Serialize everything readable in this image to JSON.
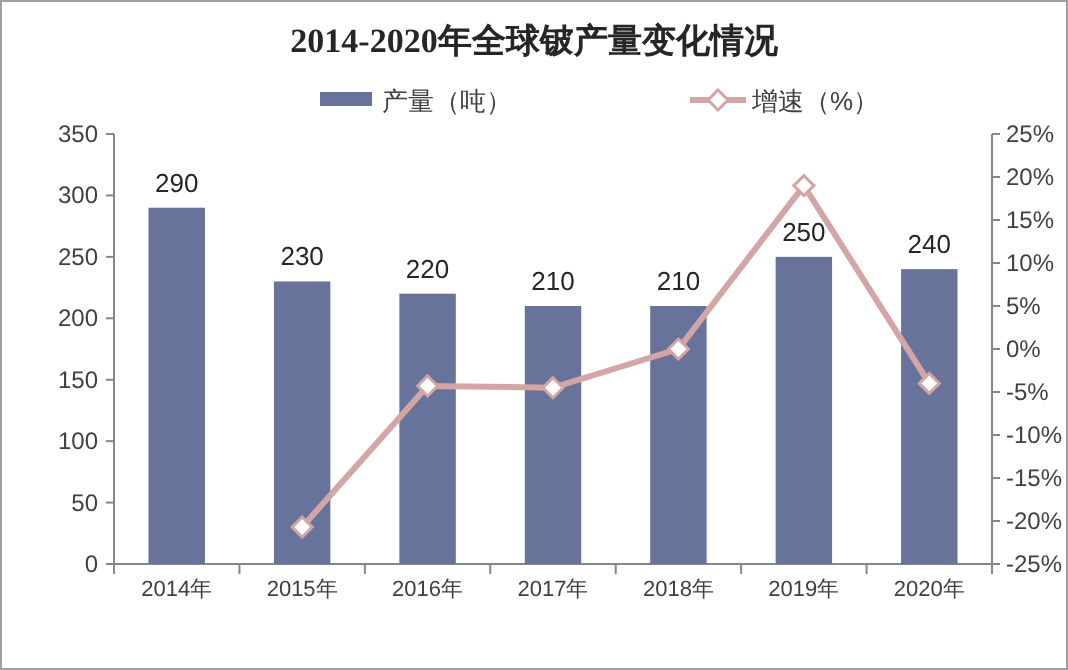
{
  "chart_data": {
    "type": "bar",
    "title": "2014-2020年全球铍产量变化情况",
    "categories": [
      "2014年",
      "2015年",
      "2016年",
      "2017年",
      "2018年",
      "2019年",
      "2020年"
    ],
    "series": [
      {
        "name": "产量（吨）",
        "color": "#68739c",
        "values": [
          290,
          230,
          220,
          210,
          210,
          250,
          240
        ],
        "data_labels": true
      },
      {
        "name": "增速（%）",
        "type": "line",
        "axis": "y2",
        "color": "#d4a5a5",
        "marker": "diamond",
        "values": [
          null,
          -20.7,
          -4.3,
          -4.5,
          0,
          19.0,
          -4.0
        ]
      }
    ],
    "ylim": [
      0,
      350
    ],
    "yticks": [
      0,
      50,
      100,
      150,
      200,
      250,
      300,
      350
    ],
    "y2lim": [
      -25,
      25
    ],
    "y2ticks": [
      {
        "value": -25,
        "label": "-25%"
      },
      {
        "value": -20,
        "label": "-20%"
      },
      {
        "value": -15,
        "label": "-15%"
      },
      {
        "value": -10,
        "label": "-10%"
      },
      {
        "value": -5,
        "label": "-5%"
      },
      {
        "value": 0,
        "label": "0%"
      },
      {
        "value": 5,
        "label": "5%"
      },
      {
        "value": 10,
        "label": "10%"
      },
      {
        "value": 15,
        "label": "15%"
      },
      {
        "value": 20,
        "label": "20%"
      },
      {
        "value": 25,
        "label": "25%"
      }
    ],
    "grid": false,
    "legend": "top"
  }
}
